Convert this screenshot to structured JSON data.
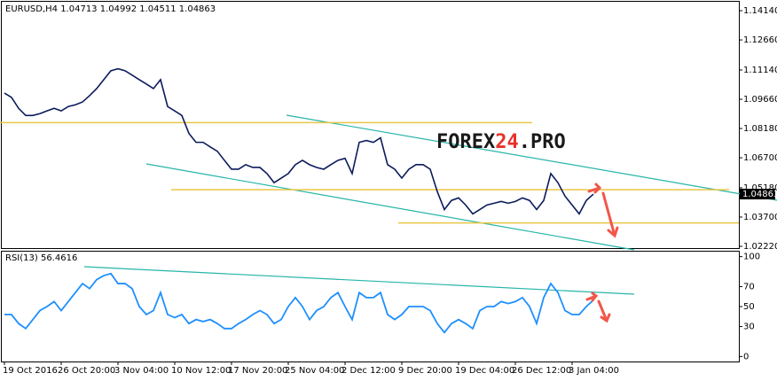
{
  "chart_data": [
    {
      "type": "line",
      "title": "EURUSD,H4  1.04713 1.04992 1.04511 1.04863",
      "watermark": [
        "FOREX",
        "24",
        ".PRO"
      ],
      "color": "#0b1b5c",
      "values": [
        1.0997,
        1.0975,
        1.092,
        1.0884,
        1.0884,
        1.0893,
        1.0907,
        1.092,
        1.0907,
        1.0929,
        1.0938,
        1.0952,
        1.0984,
        1.102,
        1.1065,
        1.111,
        1.112,
        1.111,
        1.1088,
        1.1065,
        1.1043,
        1.102,
        1.1065,
        1.0929,
        1.0907,
        1.0884,
        1.0793,
        1.0748,
        1.0748,
        1.0725,
        1.0703,
        1.0657,
        1.0612,
        1.0612,
        1.0635,
        1.0621,
        1.0621,
        1.059,
        1.0544,
        1.0567,
        1.059,
        1.0635,
        1.0657,
        1.0635,
        1.0621,
        1.0612,
        1.0635,
        1.0657,
        1.0667,
        1.059,
        1.0748,
        1.0757,
        1.0748,
        1.0771,
        1.0635,
        1.0612,
        1.0567,
        1.0612,
        1.0635,
        1.0635,
        1.0612,
        1.0499,
        1.0408,
        1.0454,
        1.0467,
        1.0431,
        1.0386,
        1.0408,
        1.0431,
        1.044,
        1.0449,
        1.044,
        1.0449,
        1.0467,
        1.0454,
        1.0408,
        1.0454,
        1.059,
        1.0544,
        1.0476,
        1.0431,
        1.0386,
        1.0454,
        1.0486
      ],
      "last_price": 1.04863,
      "levels": [
        1.0848,
        1.0508,
        1.034
      ],
      "level_color": "#e9c645",
      "ylim": [
        1.0213,
        1.1459
      ],
      "yticks": [
        {
          "value": 1.1414,
          "label": "1.14140"
        },
        {
          "value": 1.1266,
          "label": "1.12660"
        },
        {
          "value": 1.1114,
          "label": "1.11140"
        },
        {
          "value": 1.0966,
          "label": "1.09660"
        },
        {
          "value": 1.0818,
          "label": "1.08180"
        },
        {
          "value": 1.067,
          "label": "1.06700"
        },
        {
          "value": 1.0518,
          "label": "1.05180"
        },
        {
          "value": 1.037,
          "label": "1.03700"
        },
        {
          "value": 1.0222,
          "label": "1.02220"
        }
      ]
    },
    {
      "type": "line",
      "title": "RSI(13) 56.4616",
      "color": "#1e8fff",
      "categories": [
        "19 Oct 2016",
        null,
        null,
        null,
        null,
        null,
        null,
        null,
        "26 Oct 20:00",
        null,
        null,
        null,
        null,
        null,
        null,
        null,
        "3 Nov 04:00",
        null,
        null,
        null,
        null,
        null,
        null,
        null,
        "10 Nov 12:00",
        null,
        null,
        null,
        null,
        null,
        null,
        null,
        "17 Nov 20:00",
        null,
        null,
        null,
        null,
        null,
        null,
        null,
        "25 Nov 04:00",
        null,
        null,
        null,
        null,
        null,
        null,
        null,
        "2 Dec 12:00",
        null,
        null,
        null,
        null,
        null,
        null,
        null,
        "9 Dec 20:00",
        null,
        null,
        null,
        null,
        null,
        null,
        null,
        "19 Dec 04:00",
        null,
        null,
        null,
        null,
        null,
        null,
        null,
        "26 Dec 12:00",
        null,
        null,
        null,
        null,
        null,
        null,
        null,
        "3 Jan 04:00",
        null,
        null,
        null
      ],
      "values": [
        42,
        42,
        33,
        28,
        37,
        46,
        50,
        55,
        46,
        55,
        64,
        73,
        68,
        77,
        81,
        83,
        73,
        73,
        68,
        50,
        42,
        46,
        64,
        42,
        39,
        42,
        33,
        37,
        35,
        37,
        33,
        28,
        28,
        33,
        37,
        42,
        46,
        42,
        33,
        37,
        50,
        59,
        50,
        37,
        46,
        50,
        59,
        64,
        50,
        37,
        64,
        59,
        59,
        64,
        42,
        37,
        42,
        50,
        50,
        50,
        46,
        33,
        24,
        33,
        37,
        33,
        28,
        46,
        50,
        50,
        55,
        53,
        55,
        59,
        50,
        33,
        59,
        73,
        64,
        46,
        42,
        42,
        50,
        56.4616
      ],
      "ylim": [
        -5,
        105
      ],
      "yticks": [
        100,
        70,
        50,
        30,
        0
      ]
    }
  ]
}
